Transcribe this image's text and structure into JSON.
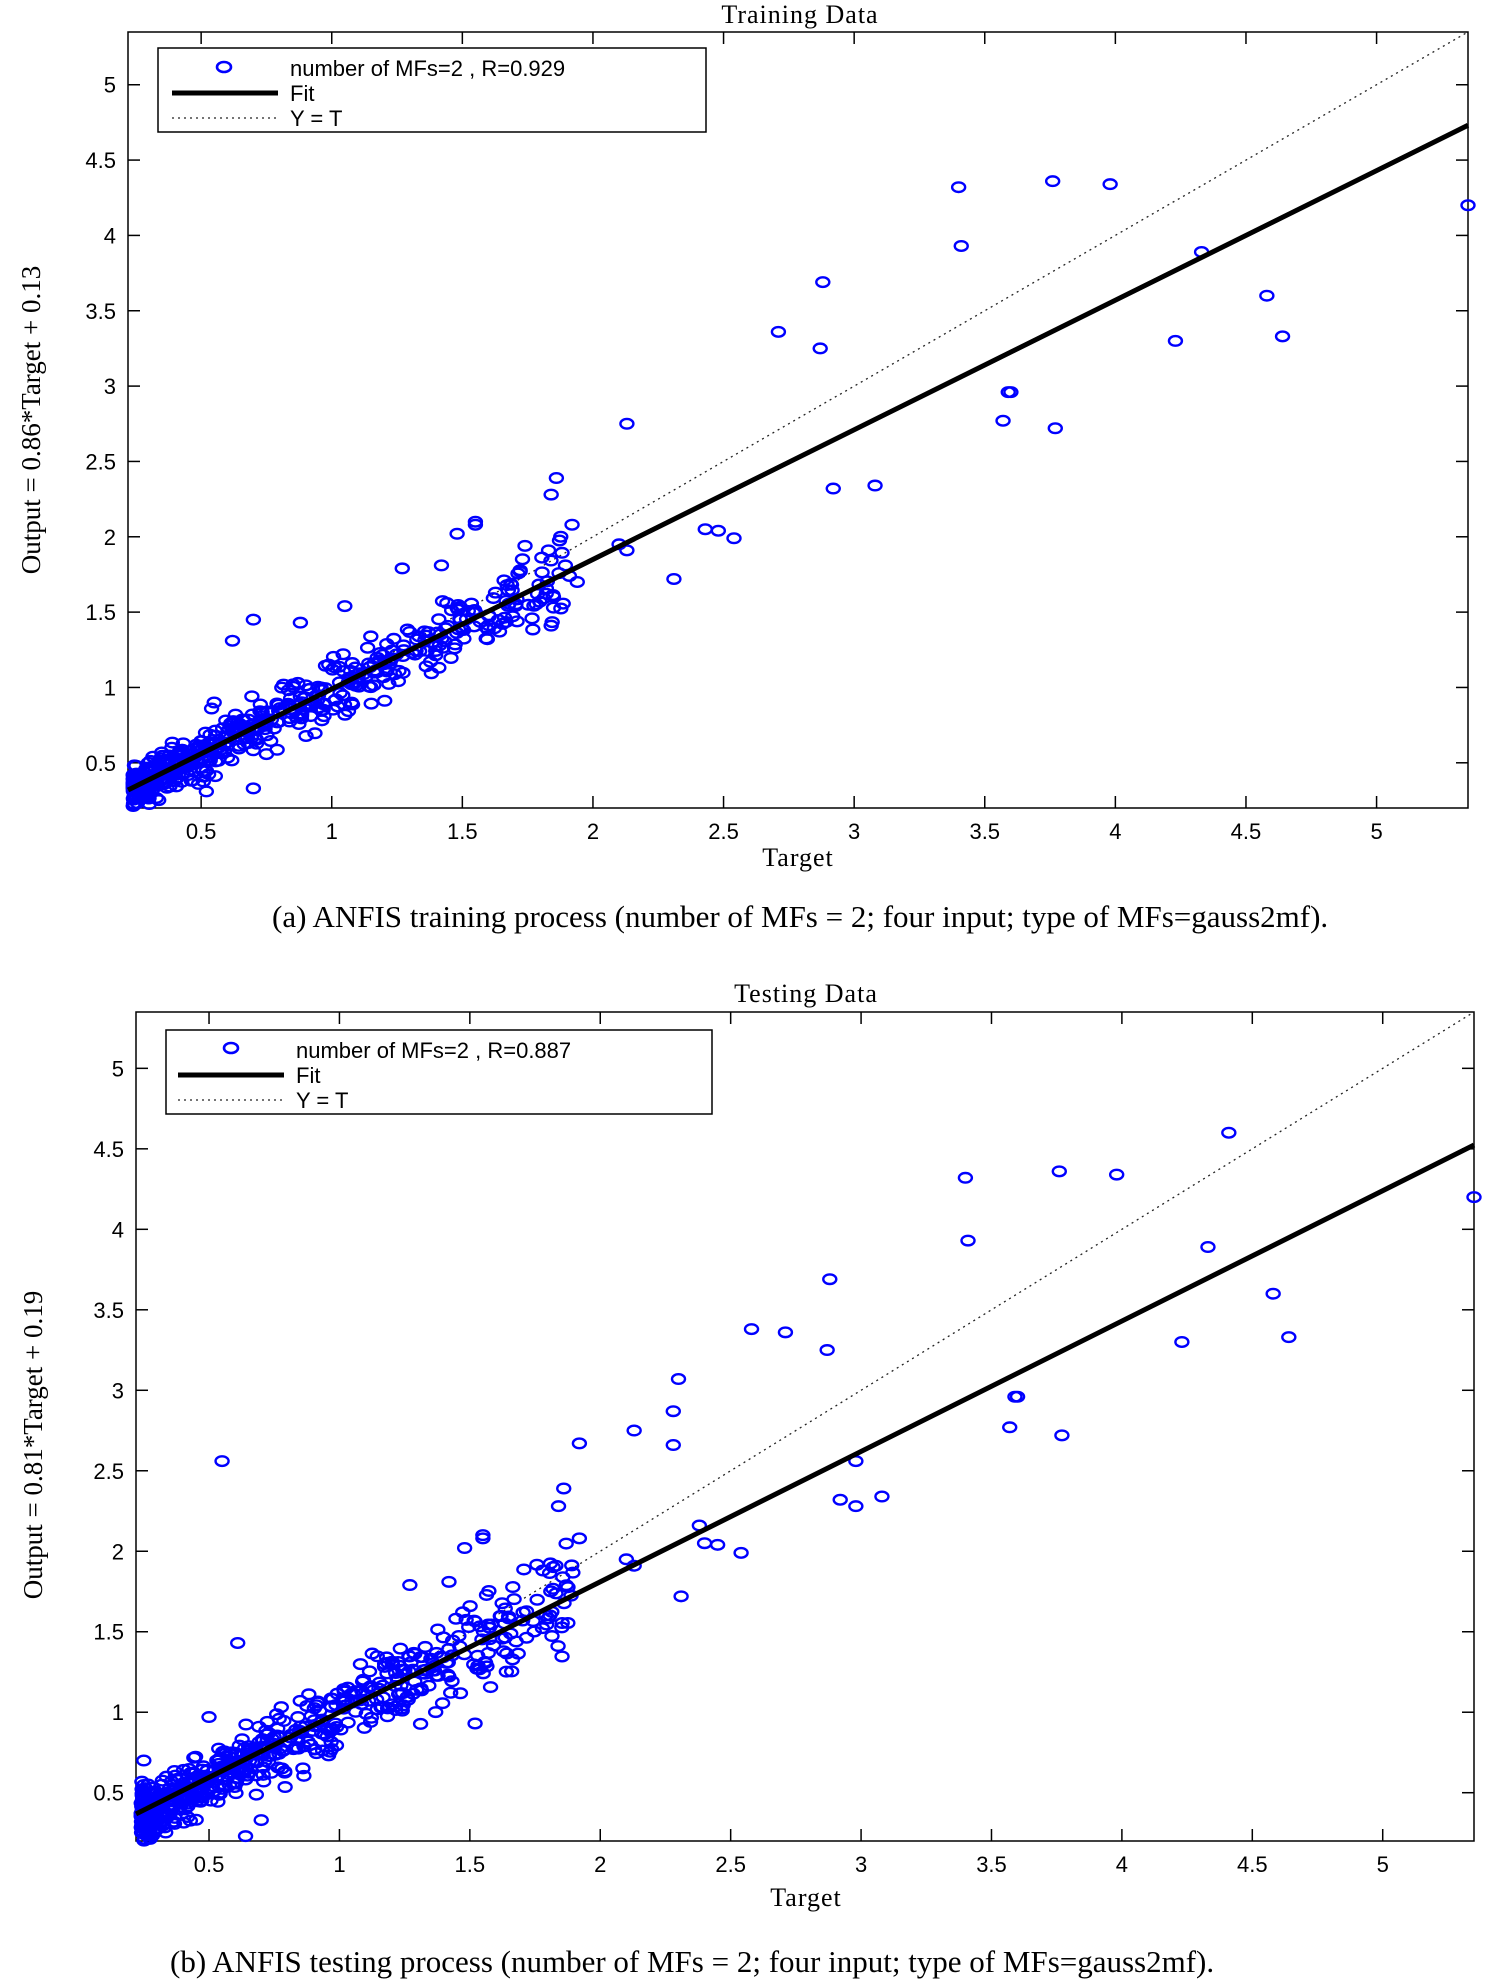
{
  "chart_data": [
    {
      "type": "scatter",
      "title": "Training Data",
      "xlabel": "Target",
      "ylabel": "Output  = 0.86*Target + 0.13",
      "xlim": [
        0.22,
        5.35
      ],
      "ylim": [
        0.2,
        5.35
      ],
      "xticks": [
        0.5,
        1,
        1.5,
        2,
        2.5,
        3,
        3.5,
        4,
        4.5,
        5
      ],
      "xtick_labels": [
        "0.5",
        "1",
        "1.5",
        "2",
        "2.5",
        "3",
        "3.5",
        "4",
        "4.5",
        "5"
      ],
      "yticks": [
        0.5,
        1,
        1.5,
        2,
        2.5,
        3,
        3.5,
        4,
        4.5,
        5
      ],
      "ytick_labels": [
        "0.5",
        "1",
        "1.5",
        "2",
        "2.5",
        "3",
        "3.5",
        "4",
        "4.5",
        "5"
      ],
      "legend_position": "top-left",
      "legend": [
        {
          "label": "number of MFs=2 , R=0.929",
          "style": "marker"
        },
        {
          "label": "Fit",
          "style": "solid"
        },
        {
          "label": "Y = T",
          "style": "dotted"
        }
      ],
      "fit": {
        "slope": 0.86,
        "intercept": 0.13
      },
      "identity_line": true,
      "marker_color": "#0000ff",
      "fit_color": "#000000",
      "caption": "(a)  ANFIS training process (number of MFs = 2; four input; type of MFs=gauss2mf).",
      "highlight_points": [
        [
          3.4,
          4.32
        ],
        [
          3.76,
          4.36
        ],
        [
          3.98,
          4.34
        ],
        [
          3.41,
          3.93
        ],
        [
          4.33,
          3.89
        ],
        [
          5.35,
          4.2
        ],
        [
          4.58,
          3.6
        ],
        [
          4.64,
          3.33
        ],
        [
          4.23,
          3.3
        ],
        [
          2.88,
          3.69
        ],
        [
          2.71,
          3.36
        ],
        [
          2.87,
          3.25
        ],
        [
          3.59,
          2.96
        ],
        [
          3.6,
          2.96
        ],
        [
          3.57,
          2.77
        ],
        [
          3.77,
          2.72
        ],
        [
          2.13,
          2.75
        ],
        [
          2.92,
          2.32
        ],
        [
          3.08,
          2.34
        ],
        [
          1.86,
          2.39
        ],
        [
          1.84,
          2.28
        ],
        [
          1.55,
          2.1
        ],
        [
          1.55,
          2.08
        ],
        [
          1.92,
          2.08
        ],
        [
          1.48,
          2.02
        ],
        [
          2.43,
          2.05
        ],
        [
          2.48,
          2.04
        ],
        [
          2.54,
          1.99
        ],
        [
          2.1,
          1.95
        ],
        [
          2.13,
          1.91
        ],
        [
          1.83,
          1.91
        ],
        [
          1.42,
          1.81
        ],
        [
          2.31,
          1.72
        ],
        [
          1.27,
          1.79
        ],
        [
          1.05,
          1.54
        ],
        [
          0.7,
          1.45
        ],
        [
          0.88,
          1.43
        ],
        [
          1.84,
          1.41
        ],
        [
          0.62,
          1.31
        ],
        [
          0.7,
          0.33
        ],
        [
          0.28,
          0.3
        ],
        [
          0.3,
          0.31
        ],
        [
          0.52,
          0.31
        ],
        [
          0.49,
          0.36
        ],
        [
          0.55,
          0.9
        ],
        [
          0.54,
          0.86
        ],
        [
          0.24,
          0.42
        ],
        [
          0.26,
          0.41
        ],
        [
          1.91,
          1.74
        ],
        [
          1.94,
          1.7
        ]
      ],
      "cloud": {
        "x_min": 0.24,
        "x_max": 1.9,
        "center_slope": 0.86,
        "center_intercept": 0.13,
        "n": 560,
        "spread": 0.17,
        "seed": 7
      }
    },
    {
      "type": "scatter",
      "title": "Testing Data",
      "xlabel": "Target",
      "ylabel": "Output  = 0.81*Target + 0.19",
      "xlim": [
        0.22,
        5.35
      ],
      "ylim": [
        0.2,
        5.35
      ],
      "xticks": [
        0.5,
        1,
        1.5,
        2,
        2.5,
        3,
        3.5,
        4,
        4.5,
        5
      ],
      "xtick_labels": [
        "0.5",
        "1",
        "1.5",
        "2",
        "2.5",
        "3",
        "3.5",
        "4",
        "4.5",
        "5"
      ],
      "yticks": [
        0.5,
        1,
        1.5,
        2,
        2.5,
        3,
        3.5,
        4,
        4.5,
        5
      ],
      "ytick_labels": [
        "0.5",
        "1",
        "1.5",
        "2",
        "2.5",
        "3",
        "3.5",
        "4",
        "4.5",
        "5"
      ],
      "legend_position": "top-left",
      "legend": [
        {
          "label": "number of MFs=2 , R=0.887",
          "style": "marker"
        },
        {
          "label": "Fit",
          "style": "solid"
        },
        {
          "label": "Y = T",
          "style": "dotted"
        }
      ],
      "fit": {
        "slope": 0.81,
        "intercept": 0.19
      },
      "identity_line": true,
      "marker_color": "#0000ff",
      "fit_color": "#000000",
      "caption": "(b)  ANFIS testing process (number of MFs = 2; four input; type of MFs=gauss2mf).",
      "highlight_points": [
        [
          4.41,
          4.6
        ],
        [
          3.4,
          4.32
        ],
        [
          3.76,
          4.36
        ],
        [
          3.98,
          4.34
        ],
        [
          5.35,
          4.2
        ],
        [
          3.41,
          3.93
        ],
        [
          4.33,
          3.89
        ],
        [
          4.58,
          3.6
        ],
        [
          4.64,
          3.33
        ],
        [
          4.23,
          3.3
        ],
        [
          2.88,
          3.69
        ],
        [
          2.58,
          3.38
        ],
        [
          2.71,
          3.36
        ],
        [
          2.87,
          3.25
        ],
        [
          2.3,
          3.07
        ],
        [
          2.28,
          2.87
        ],
        [
          2.28,
          2.66
        ],
        [
          3.59,
          2.96
        ],
        [
          3.6,
          2.96
        ],
        [
          3.57,
          2.77
        ],
        [
          3.77,
          2.72
        ],
        [
          2.13,
          2.75
        ],
        [
          1.92,
          2.67
        ],
        [
          0.55,
          2.56
        ],
        [
          2.98,
          2.56
        ],
        [
          2.92,
          2.32
        ],
        [
          2.98,
          2.28
        ],
        [
          3.08,
          2.34
        ],
        [
          1.86,
          2.39
        ],
        [
          1.84,
          2.28
        ],
        [
          1.55,
          2.1
        ],
        [
          1.55,
          2.08
        ],
        [
          1.92,
          2.08
        ],
        [
          1.48,
          2.02
        ],
        [
          2.38,
          2.16
        ],
        [
          2.4,
          2.05
        ],
        [
          2.45,
          2.04
        ],
        [
          2.54,
          1.99
        ],
        [
          2.1,
          1.95
        ],
        [
          2.13,
          1.91
        ],
        [
          1.83,
          1.91
        ],
        [
          1.42,
          1.81
        ],
        [
          2.31,
          1.72
        ],
        [
          1.27,
          1.79
        ],
        [
          0.25,
          0.7
        ],
        [
          0.64,
          0.23
        ],
        [
          0.7,
          0.33
        ],
        [
          1.52,
          0.93
        ],
        [
          0.5,
          0.97
        ],
        [
          0.61,
          1.43
        ]
      ],
      "cloud": {
        "x_min": 0.24,
        "x_max": 1.9,
        "center_slope": 0.83,
        "center_intercept": 0.16,
        "n": 640,
        "spread": 0.2,
        "seed": 23
      }
    }
  ]
}
